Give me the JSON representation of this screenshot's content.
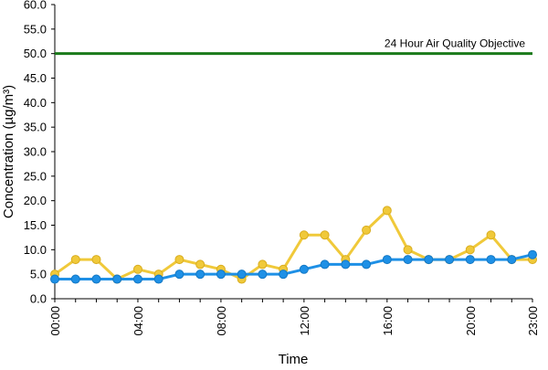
{
  "chart_data": {
    "type": "line",
    "title": "",
    "xlabel": "Time",
    "ylabel": "Concentration (µg/m³)",
    "ylim": [
      0,
      60
    ],
    "y_ticks": [
      "0.0",
      "5.0",
      "10.0",
      "15.0",
      "20.0",
      "25.0",
      "30.0",
      "35.0",
      "40.0",
      "45.0",
      "50.0",
      "55.0",
      "60.0"
    ],
    "x_ticks": [
      "00:00",
      "04:00",
      "08:00",
      "12:00",
      "16:00",
      "20:00",
      "23:00"
    ],
    "x_tick_hours": [
      0,
      4,
      8,
      12,
      16,
      20,
      23
    ],
    "x_hours": [
      0,
      1,
      2,
      3,
      4,
      5,
      6,
      7,
      8,
      9,
      10,
      11,
      12,
      13,
      14,
      15,
      16,
      17,
      18,
      19,
      20,
      21,
      22,
      23
    ],
    "grid": false,
    "legend": "none",
    "series": [
      {
        "color": "#f0c93a",
        "values": [
          5,
          8,
          8,
          4,
          6,
          5,
          8,
          7,
          6,
          4,
          7,
          6,
          13,
          13,
          8,
          14,
          18,
          10,
          8,
          8,
          10,
          13,
          8,
          8
        ]
      },
      {
        "color": "#1e90e6",
        "values": [
          4,
          4,
          4,
          4,
          4,
          4,
          5,
          5,
          5,
          5,
          5,
          5,
          6,
          7,
          7,
          7,
          8,
          8,
          8,
          8,
          8,
          8,
          8,
          9
        ]
      }
    ],
    "reference_line": {
      "value": 50,
      "label": "24 Hour Air Quality Objective",
      "color": "#1a7a1a"
    }
  }
}
